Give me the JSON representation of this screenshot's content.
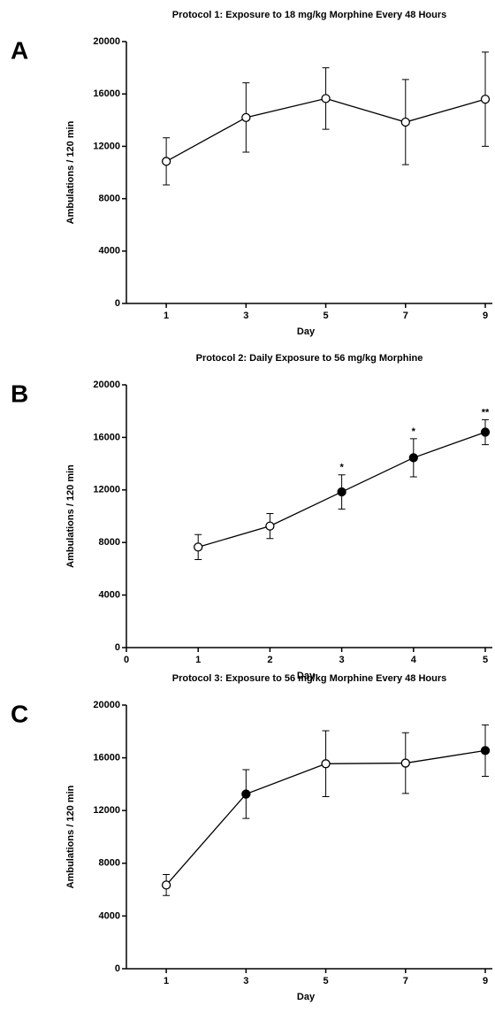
{
  "chart_data": [
    {
      "type": "line",
      "panel": "A",
      "title": "Protocol 1: Exposure to 18 mg/kg Morphine Every 48 Hours",
      "xlabel": "Day",
      "ylabel": "Ambulations / 120 min",
      "x": [
        1,
        3,
        5,
        7,
        9
      ],
      "xlim": [
        0,
        9
      ],
      "xticks": [
        1,
        3,
        5,
        7,
        9
      ],
      "ylim": [
        0,
        20000
      ],
      "yticks": [
        0,
        4000,
        8000,
        12000,
        16000,
        20000
      ],
      "series": [
        {
          "color": "#000000",
          "values": [
            10850,
            14200,
            15650,
            13850,
            15600
          ],
          "errors": [
            1800,
            2650,
            2350,
            3250,
            3600
          ],
          "marker_fills": [
            "#ffffff",
            "#ffffff",
            "#ffffff",
            "#ffffff",
            "#ffffff"
          ],
          "point_labels": [
            null,
            null,
            null,
            null,
            null
          ]
        }
      ]
    },
    {
      "type": "line",
      "panel": "B",
      "title": "Protocol 2: Daily Exposure to 56 mg/kg Morphine",
      "xlabel": "Day",
      "ylabel": "Ambulations / 120 min",
      "x": [
        1,
        2,
        3,
        4,
        5
      ],
      "xlim": [
        0,
        5
      ],
      "xticks": [
        0,
        1,
        2,
        3,
        4,
        5
      ],
      "ylim": [
        0,
        20000
      ],
      "yticks": [
        0,
        4000,
        8000,
        12000,
        16000,
        20000
      ],
      "series": [
        {
          "color": "#000000",
          "values": [
            7650,
            9250,
            11850,
            14450,
            16400
          ],
          "errors": [
            950,
            950,
            1300,
            1450,
            950
          ],
          "marker_fills": [
            "#ffffff",
            "#ffffff",
            "#000000",
            "#000000",
            "#000000"
          ],
          "point_labels": [
            null,
            null,
            "*",
            "*",
            "**"
          ]
        }
      ]
    },
    {
      "type": "line",
      "panel": "C",
      "title": "Protocol 3: Exposure to 56 mg/kg Morphine Every 48 Hours",
      "xlabel": "Day",
      "ylabel": "Ambulations / 120 min",
      "x": [
        1,
        3,
        5,
        7,
        9
      ],
      "xlim": [
        0,
        9
      ],
      "xticks": [
        1,
        3,
        5,
        7,
        9
      ],
      "ylim": [
        0,
        20000
      ],
      "yticks": [
        0,
        4000,
        8000,
        12000,
        16000,
        20000
      ],
      "series": [
        {
          "color": "#000000",
          "values": [
            6350,
            13250,
            15550,
            15600,
            16550
          ],
          "errors": [
            800,
            1850,
            2500,
            2300,
            1950
          ],
          "marker_fills": [
            "#ffffff",
            "#000000",
            "#ffffff",
            "#ffffff",
            "#000000"
          ],
          "point_labels": [
            null,
            null,
            null,
            null,
            null
          ]
        }
      ]
    }
  ]
}
